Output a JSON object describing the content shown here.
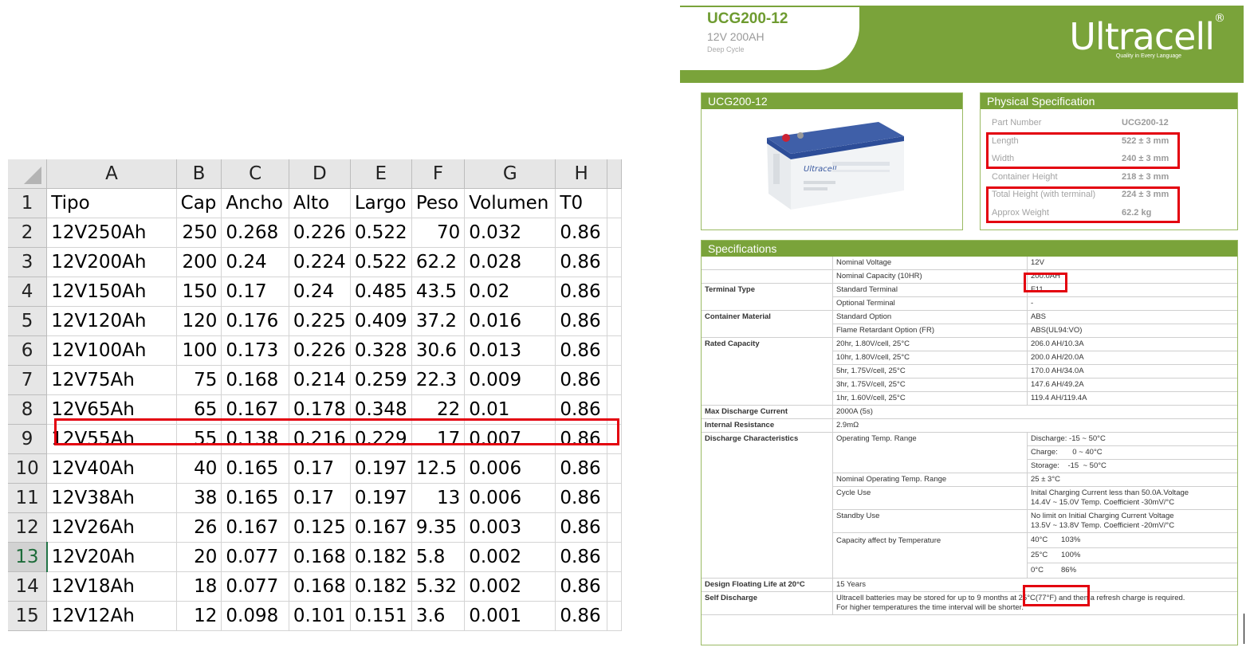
{
  "sheet": {
    "columns": [
      "A",
      "B",
      "C",
      "D",
      "E",
      "F",
      "G",
      "H"
    ],
    "rows": [
      {
        "n": "1",
        "cells": [
          "Tipo",
          "Cap",
          "Ancho",
          "Alto",
          "Largo",
          "Peso",
          "Volumen",
          "T0"
        ]
      },
      {
        "n": "2",
        "cells": [
          "12V250Ah",
          "250",
          "0.268",
          "0.226",
          "0.522",
          "70",
          "0.032",
          "0.86"
        ]
      },
      {
        "n": "3",
        "cells": [
          "12V200Ah",
          "200",
          "0.24",
          "0.224",
          "0.522",
          "62.2",
          "0.028",
          "0.86"
        ]
      },
      {
        "n": "4",
        "cells": [
          "12V150Ah",
          "150",
          "0.17",
          "0.24",
          "0.485",
          "43.5",
          "0.02",
          "0.86"
        ]
      },
      {
        "n": "5",
        "cells": [
          "12V120Ah",
          "120",
          "0.176",
          "0.225",
          "0.409",
          "37.2",
          "0.016",
          "0.86"
        ]
      },
      {
        "n": "6",
        "cells": [
          "12V100Ah",
          "100",
          "0.173",
          "0.226",
          "0.328",
          "30.6",
          "0.013",
          "0.86"
        ]
      },
      {
        "n": "7",
        "cells": [
          "12V75Ah",
          "75",
          "0.168",
          "0.214",
          "0.259",
          "22.3",
          "0.009",
          "0.86"
        ]
      },
      {
        "n": "8",
        "cells": [
          "12V65Ah",
          "65",
          "0.167",
          "0.178",
          "0.348",
          "22",
          "0.01",
          "0.86"
        ]
      },
      {
        "n": "9",
        "cells": [
          "12V55Ah",
          "55",
          "0.138",
          "0.216",
          "0.229",
          "17",
          "0.007",
          "0.86"
        ]
      },
      {
        "n": "10",
        "cells": [
          "12V40Ah",
          "40",
          "0.165",
          "0.17",
          "0.197",
          "12.5",
          "0.006",
          "0.86"
        ]
      },
      {
        "n": "11",
        "cells": [
          "12V38Ah",
          "38",
          "0.165",
          "0.17",
          "0.197",
          "13",
          "0.006",
          "0.86"
        ]
      },
      {
        "n": "12",
        "cells": [
          "12V26Ah",
          "26",
          "0.167",
          "0.125",
          "0.167",
          "9.35",
          "0.003",
          "0.86"
        ]
      },
      {
        "n": "13",
        "cells": [
          "12V20Ah",
          "20",
          "0.077",
          "0.168",
          "0.182",
          "5.8",
          "0.002",
          "0.86"
        ]
      },
      {
        "n": "14",
        "cells": [
          "12V18Ah",
          "18",
          "0.077",
          "0.168",
          "0.182",
          "5.32",
          "0.002",
          "0.86"
        ]
      },
      {
        "n": "15",
        "cells": [
          "12V12Ah",
          "12",
          "0.098",
          "0.101",
          "0.151",
          "3.6",
          "0.001",
          "0.86"
        ]
      }
    ],
    "right_aligned_cells": {
      "2": [
        1,
        5
      ],
      "3": [
        1
      ],
      "4": [
        1
      ],
      "5": [
        1
      ],
      "6": [
        1
      ],
      "7": [
        1
      ],
      "8": [
        1,
        5
      ],
      "9": [
        1,
        5
      ],
      "10": [
        1
      ],
      "11": [
        1,
        5
      ],
      "12": [
        1
      ],
      "13": [
        1
      ],
      "14": [
        1
      ],
      "15": [
        1
      ]
    },
    "selected_row_header": "13",
    "highlight_color": "#e3000f"
  },
  "datasheet": {
    "banner": {
      "model": "UCG200-12",
      "voltage_capacity": "12V 200AH",
      "subtitle": "Deep Cycle",
      "brand": "Ultracell",
      "brand_mark": "®",
      "tagline": "Quality in Every Language",
      "brand_color": "#7aa33a"
    },
    "product_panel": {
      "title": "UCG200-12",
      "battery_label": "Ultracell"
    },
    "physical": {
      "title": "Physical Specification",
      "rows": [
        {
          "k": "Part Number",
          "v": "UCG200-12"
        },
        {
          "k": "Length",
          "v": "522 ± 3 mm"
        },
        {
          "k": "Width",
          "v": "240 ± 3 mm"
        },
        {
          "k": "Container Height",
          "v": "218 ± 3 mm"
        },
        {
          "k": "Total Height (with terminal)",
          "v": "224 ± 3 mm"
        },
        {
          "k": "Approx Weight",
          "v": "62.2 kg"
        }
      ]
    },
    "specs": {
      "title": "Specifications",
      "nominal_voltage": {
        "k": "Nominal Voltage",
        "v": "12V"
      },
      "nominal_capacity": {
        "k": "Nominal Capacity (10HR)",
        "v": "200.0AH"
      },
      "terminal_type": {
        "label": "Terminal Type",
        "r1k": "Standard Terminal",
        "r1v": "F11",
        "r2k": "Optional Terminal",
        "r2v": "-"
      },
      "container_material": {
        "label": "Container Material",
        "r1k": "Standard Option",
        "r1v": "ABS",
        "r2k": "Flame Retardant Option (FR)",
        "r2v": "ABS(UL94:VO)"
      },
      "rated_capacity": {
        "label": "Rated Capacity",
        "rows": [
          {
            "k": "20hr, 1.80V/cell, 25°C",
            "v": "206.0 AH/10.3A"
          },
          {
            "k": "10hr, 1.80V/cell, 25°C",
            "v": "200.0 AH/20.0A"
          },
          {
            "k": "5hr, 1.75V/cell, 25°C",
            "v": "170.0 AH/34.0A"
          },
          {
            "k": "3hr, 1.75V/cell, 25°C",
            "v": "147.6 AH/49.2A"
          },
          {
            "k": "1hr, 1.60V/cell, 25°C",
            "v": "119.4 AH/119.4A"
          }
        ]
      },
      "max_discharge": {
        "label": "Max Discharge Current",
        "v": "2000A (5s)"
      },
      "internal_resistance": {
        "label": "Internal Resistance",
        "v": "2.9mΩ"
      },
      "discharge": {
        "label": "Discharge Characteristics",
        "op_temp_label": "Operating Temp. Range",
        "op_discharge": "Discharge: -15 ~ 50°C",
        "op_charge": "Charge:       0 ~ 40°C",
        "op_storage": "Storage:    -15  ~ 50°C",
        "nominal_op_label": "Nominal Operating Temp. Range",
        "nominal_op_v": "25 ± 3°C",
        "cycle_label": "Cycle Use",
        "cycle_v1": "Inital Charging Current less than 50.0A.Voltage",
        "cycle_v2": "14.4V ~ 15.0V Temp. Coefficient -30mV/°C",
        "standby_label": "Standby Use",
        "standby_v1": "No limit on Initial Charging Current Voltage",
        "standby_v2": "13.5V ~ 13.8V Temp. Coefficient -20mV/°C",
        "cap_temp_label": "Capacity affect by Temperature",
        "t40": "40°C",
        "t40v": "103%",
        "t25": "25°C",
        "t25v": "100%",
        "t0": "0°C",
        "t0v": "86%"
      },
      "floating_life": {
        "label": "Design Floating Life at 20°C",
        "v": "15 Years"
      },
      "self_discharge": {
        "label": "Self Discharge",
        "v1": "Ultracell batteries may be stored for up to 9 months at 25°C(77°F) and then a refresh charge is required.",
        "v2": "For higher temperatures the time interval will be shorter."
      }
    }
  }
}
